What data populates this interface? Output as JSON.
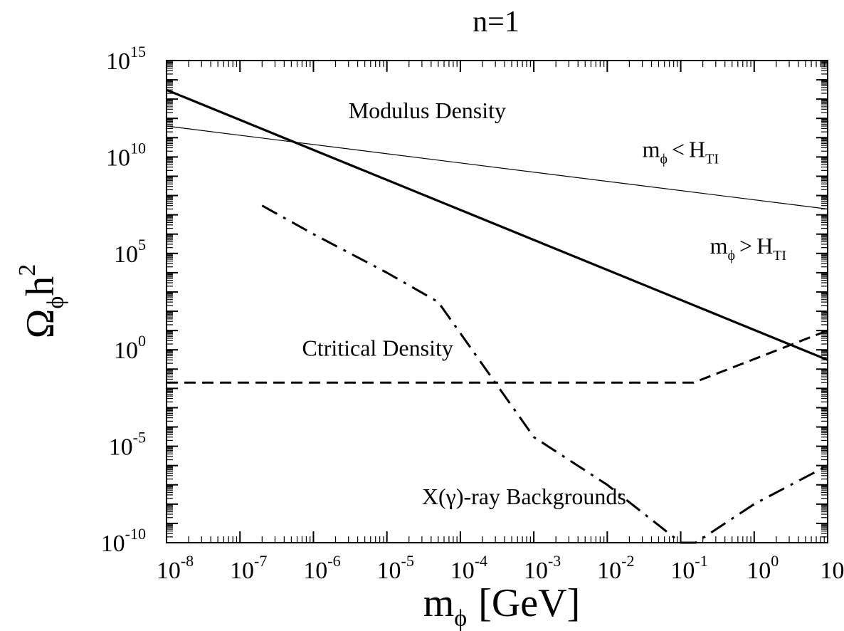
{
  "chart_data": {
    "type": "line",
    "title": "n=1",
    "xlabel": "m",
    "xlabel_sub": "ϕ",
    "xlabel_unit": "[GeV]",
    "ylabel": "Ω",
    "ylabel_sub": "ϕ",
    "ylabel_h": "h",
    "ylabel_sup": "2",
    "xscale": "log",
    "yscale": "log",
    "xlim": [
      1e-08,
      10
    ],
    "ylim": [
      1e-10,
      1000000000000000.0
    ],
    "grid": false,
    "x_ticks": [
      {
        "value": 1e-08,
        "base": "10",
        "exp": "-8"
      },
      {
        "value": 1e-07,
        "base": "10",
        "exp": "-7"
      },
      {
        "value": 1e-06,
        "base": "10",
        "exp": "-6"
      },
      {
        "value": 1e-05,
        "base": "10",
        "exp": "-5"
      },
      {
        "value": 0.0001,
        "base": "10",
        "exp": "-4"
      },
      {
        "value": 0.001,
        "base": "10",
        "exp": "-3"
      },
      {
        "value": 0.01,
        "base": "10",
        "exp": "-2"
      },
      {
        "value": 0.1,
        "base": "10",
        "exp": "-1"
      },
      {
        "value": 1,
        "base": "10",
        "exp": "0"
      },
      {
        "value": 10,
        "base": "10",
        "exp": "1"
      }
    ],
    "y_ticks": [
      {
        "value": 1000000000000000.0,
        "base": "10",
        "exp": "15"
      },
      {
        "value": 10000000000.0,
        "base": "10",
        "exp": "10"
      },
      {
        "value": 100000.0,
        "base": "10",
        "exp": "5"
      },
      {
        "value": 1,
        "base": "10",
        "exp": "0"
      },
      {
        "value": 1e-05,
        "base": "10",
        "exp": "-5"
      },
      {
        "value": 1e-10,
        "base": "10",
        "exp": "-10"
      }
    ],
    "series": [
      {
        "style": "thick-solid",
        "x": [
          1e-08,
          10
        ],
        "y": [
          30000000000000.0,
          0.3
        ]
      },
      {
        "style": "thin-solid",
        "x": [
          1e-08,
          10
        ],
        "y": [
          400000000000.0,
          20000000.0
        ]
      },
      {
        "style": "dashed",
        "x": [
          1e-08,
          0.15,
          10
        ],
        "y": [
          0.02,
          0.02,
          10
        ]
      },
      {
        "style": "dash-dot",
        "x": [
          2e-07,
          1e-06,
          1e-05,
          5e-05,
          0.001,
          0.01,
          0.1,
          0.16,
          1,
          10
        ],
        "y": [
          30000000.0,
          1000000.0,
          10000.0,
          300,
          3e-05,
          1e-07,
          1e-10,
          1e-10,
          1e-08,
          1e-06
        ]
      }
    ],
    "annotations": [
      {
        "id": "modulus",
        "text": "Modulus Density",
        "x": 3e-06,
        "y": 1000000000000.0
      },
      {
        "id": "lt",
        "m": "m",
        "sub": "ϕ",
        "op": "<",
        "H": "H",
        "Hsub": "TI",
        "x": 0.03,
        "y": 10000000000.0
      },
      {
        "id": "gt",
        "m": "m",
        "sub": "ϕ",
        "op": ">",
        "H": "H",
        "Hsub": "TI",
        "x": 0.25,
        "y": 100000.0
      },
      {
        "id": "critical",
        "text": "Ctritical Density",
        "x": 7e-07,
        "y": 0.5
      },
      {
        "id": "xray",
        "text": "X(γ)-ray Backgrounds",
        "x": 3e-05,
        "y": 1e-08
      }
    ]
  }
}
